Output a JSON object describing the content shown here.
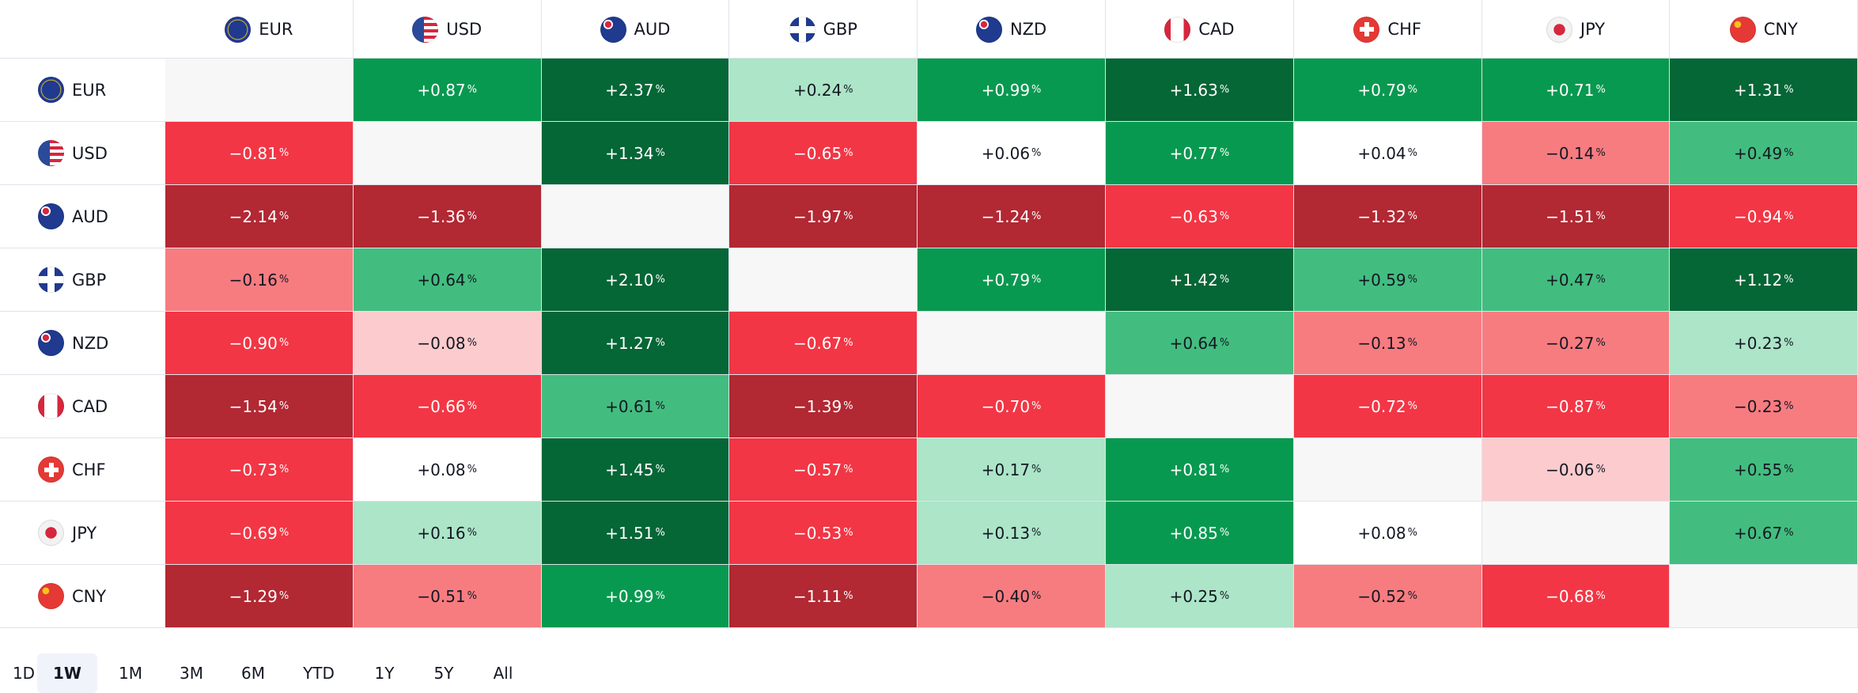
{
  "header": {
    "columns": [
      "EUR",
      "USD",
      "AUD",
      "GBP",
      "NZD",
      "CAD",
      "CHF",
      "JPY",
      "CNY"
    ]
  },
  "table": {
    "empty_color": "#f7f7f7",
    "rows": [
      {
        "label": "EUR",
        "cells": [
          null,
          "+0.87%",
          "+2.37%",
          "+0.24%",
          "+0.99%",
          "+1.63%",
          "+0.79%",
          "+0.71%",
          "+1.31%"
        ],
        "colors": [
          null,
          "#089950",
          "#056636",
          "#ace5c8",
          "#089950",
          "#056636",
          "#089950",
          "#089950",
          "#056636"
        ]
      },
      {
        "label": "USD",
        "cells": [
          "−0.81%",
          null,
          "+1.34%",
          "−0.65%",
          "+0.06%",
          "+0.77%",
          "+0.04%",
          "−0.14%",
          "+0.49%"
        ],
        "colors": [
          "#f23645",
          null,
          "#056636",
          "#f23645",
          "#ffffff",
          "#089950",
          "#ffffff",
          "#f77c80",
          "#42bd7f"
        ]
      },
      {
        "label": "AUD",
        "cells": [
          "−2.14%",
          "−1.36%",
          null,
          "−1.97%",
          "−1.24%",
          "−0.63%",
          "−1.32%",
          "−1.51%",
          "−0.94%"
        ],
        "colors": [
          "#b22833",
          "#b22833",
          null,
          "#b22833",
          "#b22833",
          "#f23645",
          "#b22833",
          "#b22833",
          "#f23645"
        ]
      },
      {
        "label": "GBP",
        "cells": [
          "−0.16%",
          "+0.64%",
          "+2.10%",
          null,
          "+0.79%",
          "+1.42%",
          "+0.59%",
          "+0.47%",
          "+1.12%"
        ],
        "colors": [
          "#f77c80",
          "#42bd7f",
          "#056636",
          null,
          "#089950",
          "#056636",
          "#42bd7f",
          "#42bd7f",
          "#056636"
        ]
      },
      {
        "label": "NZD",
        "cells": [
          "−0.90%",
          "−0.08%",
          "+1.27%",
          "−0.67%",
          null,
          "+0.64%",
          "−0.13%",
          "−0.27%",
          "+0.23%"
        ],
        "colors": [
          "#f23645",
          "#fccbcd",
          "#056636",
          "#f23645",
          null,
          "#42bd7f",
          "#f77c80",
          "#f77c80",
          "#ace5c8"
        ]
      },
      {
        "label": "CAD",
        "cells": [
          "−1.54%",
          "−0.66%",
          "+0.61%",
          "−1.39%",
          "−0.70%",
          null,
          "−0.72%",
          "−0.87%",
          "−0.23%"
        ],
        "colors": [
          "#b22833",
          "#f23645",
          "#42bd7f",
          "#b22833",
          "#f23645",
          null,
          "#f23645",
          "#f23645",
          "#f77c80"
        ]
      },
      {
        "label": "CHF",
        "cells": [
          "−0.73%",
          "+0.08%",
          "+1.45%",
          "−0.57%",
          "+0.17%",
          "+0.81%",
          null,
          "−0.06%",
          "+0.55%"
        ],
        "colors": [
          "#f23645",
          "#ffffff",
          "#056636",
          "#f23645",
          "#ace5c8",
          "#089950",
          null,
          "#fccbcd",
          "#42bd7f"
        ]
      },
      {
        "label": "JPY",
        "cells": [
          "−0.69%",
          "+0.16%",
          "+1.51%",
          "−0.53%",
          "+0.13%",
          "+0.85%",
          "+0.08%",
          null,
          "+0.67%"
        ],
        "colors": [
          "#f23645",
          "#ace5c8",
          "#056636",
          "#f23645",
          "#ace5c8",
          "#089950",
          "#ffffff",
          null,
          "#42bd7f"
        ]
      },
      {
        "label": "CNY",
        "cells": [
          "−1.29%",
          "−0.51%",
          "+0.99%",
          "−1.11%",
          "−0.40%",
          "+0.25%",
          "−0.52%",
          "−0.68%",
          null
        ],
        "colors": [
          "#b22833",
          "#f77c80",
          "#089950",
          "#b22833",
          "#f77c80",
          "#ace5c8",
          "#f77c80",
          "#f23645",
          null
        ]
      }
    ]
  },
  "periods": {
    "options": [
      "1D",
      "1W",
      "1M",
      "3M",
      "6M",
      "YTD",
      "1Y",
      "5Y",
      "All"
    ],
    "selected": "1W"
  }
}
